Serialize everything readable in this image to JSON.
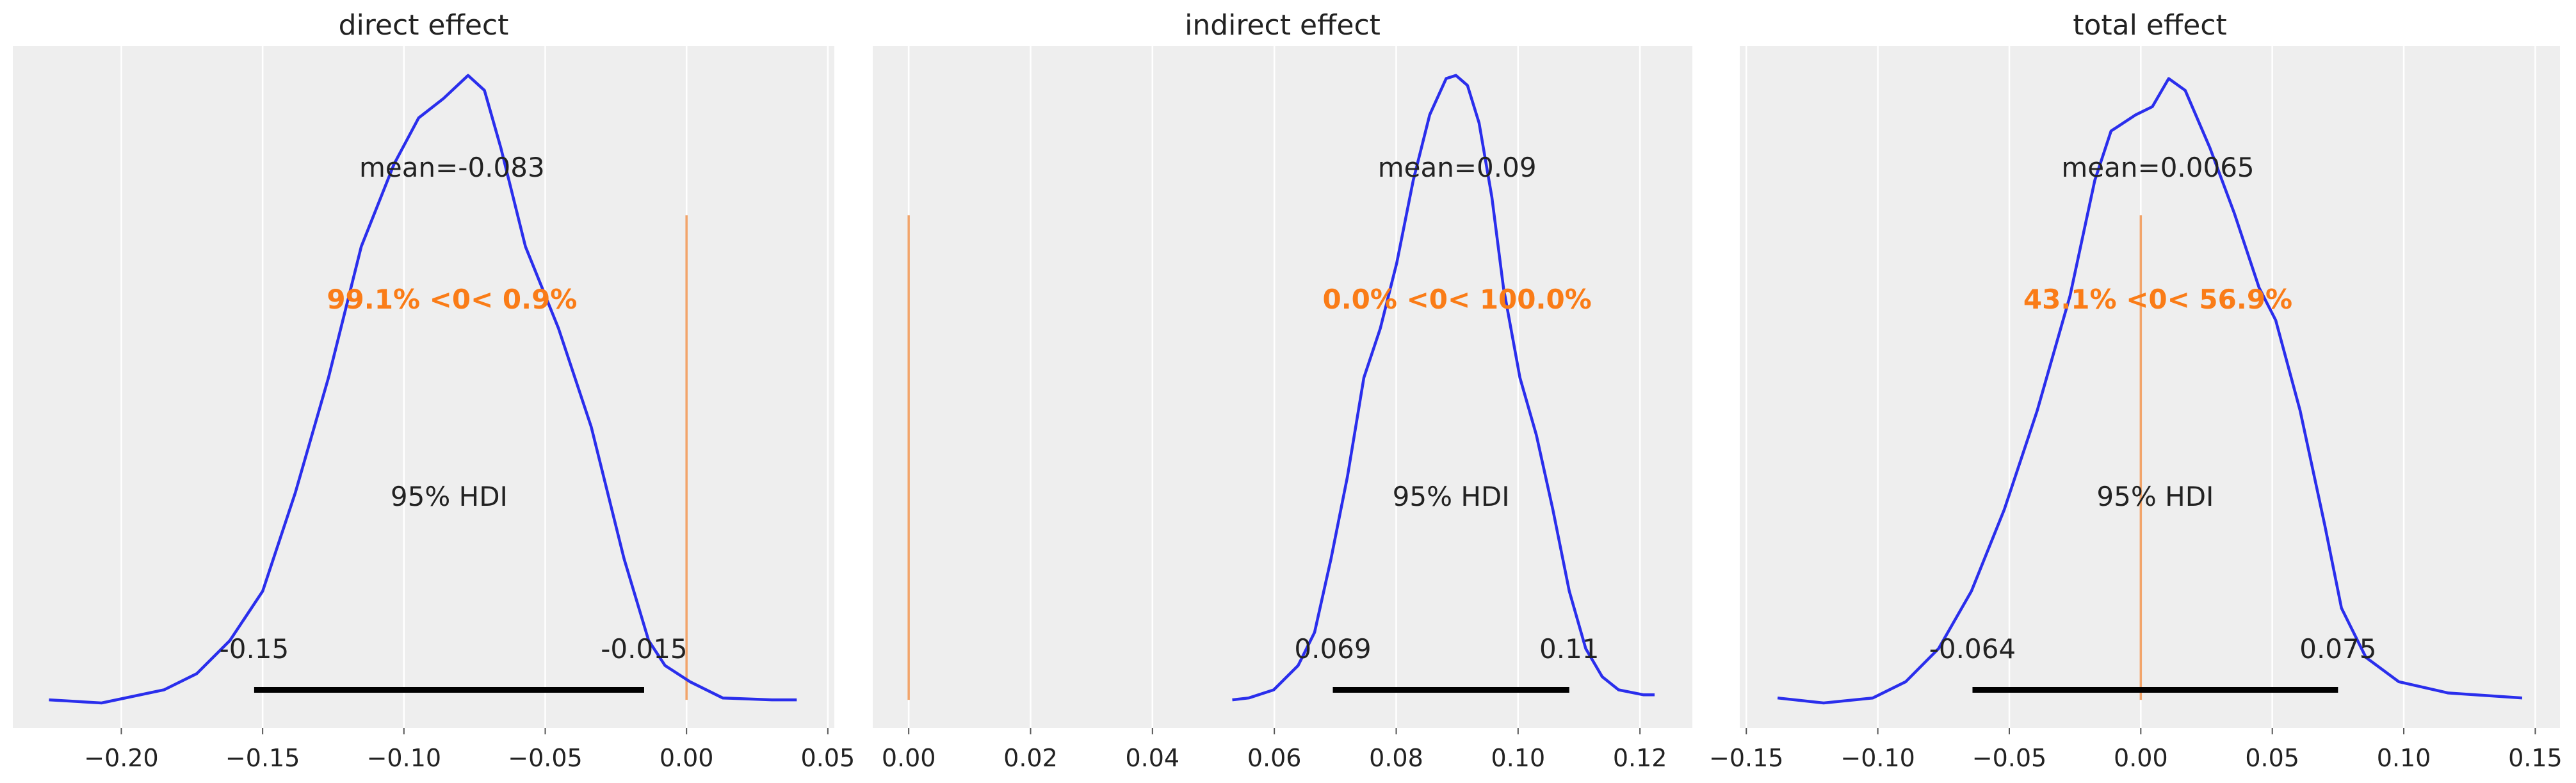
{
  "chart_data": [
    {
      "type": "line",
      "title": "direct effect",
      "xlim": [
        -0.2384,
        0.0523
      ],
      "ylim": [
        -0.045,
        1.047
      ],
      "grid": true,
      "xticks": [
        -0.2,
        -0.15,
        -0.1,
        -0.05,
        0.0,
        0.05
      ],
      "xtick_labels": [
        "−0.20",
        "−0.15",
        "−0.10",
        "−0.05",
        "0.00",
        "0.05"
      ],
      "kde": {
        "x": [
          -0.2256,
          -0.207,
          -0.1849,
          -0.1733,
          -0.1616,
          -0.15,
          -0.1384,
          -0.1267,
          -0.1151,
          -0.1035,
          -0.0948,
          -0.086,
          -0.0773,
          -0.0715,
          -0.0657,
          -0.057,
          -0.0453,
          -0.0337,
          -0.0221,
          -0.0134,
          -0.0076,
          0.0012,
          0.0128,
          0.0302,
          0.039
        ],
        "density": [
          0,
          -0.005,
          0.016,
          0.042,
          0.095,
          0.174,
          0.332,
          0.516,
          0.726,
          0.858,
          0.932,
          0.963,
          1,
          0.976,
          0.884,
          0.726,
          0.595,
          0.437,
          0.226,
          0.095,
          0.055,
          0.029,
          0.003,
          0,
          0
        ]
      },
      "mean": -0.083,
      "mean_label": "mean=-0.083",
      "ref_val": 0,
      "ref_label": "99.1% <0< 0.9%",
      "hdi_prob_label": "95% HDI",
      "hdi": [
        -0.153,
        -0.015
      ],
      "hdi_labels": [
        "-0.15",
        "-0.015"
      ]
    },
    {
      "type": "line",
      "title": "indirect effect",
      "xlim": [
        -0.0059,
        0.1286
      ],
      "ylim": [
        -0.045,
        1.047
      ],
      "grid": true,
      "xticks": [
        0.0,
        0.02,
        0.04,
        0.06,
        0.08,
        0.1,
        0.12
      ],
      "xtick_labels": [
        "0.00",
        "0.02",
        "0.04",
        "0.06",
        "0.08",
        "0.10",
        "0.12"
      ],
      "kde": {
        "x": [
          0.0531,
          0.0558,
          0.0599,
          0.0639,
          0.0666,
          0.0693,
          0.072,
          0.0747,
          0.0774,
          0.0801,
          0.0828,
          0.0855,
          0.0882,
          0.0898,
          0.0917,
          0.0936,
          0.0957,
          0.0976,
          0.1003,
          0.103,
          0.1057,
          0.1084,
          0.1111,
          0.1138,
          0.1165,
          0.1206,
          0.1224
        ],
        "density": [
          0,
          0.003,
          0.016,
          0.055,
          0.108,
          0.226,
          0.358,
          0.516,
          0.595,
          0.7,
          0.832,
          0.937,
          0.995,
          1,
          0.984,
          0.924,
          0.805,
          0.66,
          0.516,
          0.424,
          0.305,
          0.174,
          0.082,
          0.037,
          0.016,
          0.008,
          0.008
        ]
      },
      "mean": 0.09,
      "mean_label": "mean=0.09",
      "ref_val": 0,
      "ref_label": "0.0% <0< 100.0%",
      "hdi_prob_label": "95% HDI",
      "hdi": [
        0.0696,
        0.1084
      ],
      "hdi_labels": [
        "0.069",
        "0.11"
      ]
    },
    {
      "type": "line",
      "title": "total effect",
      "xlim": [
        -0.1525,
        0.1594
      ],
      "ylim": [
        -0.045,
        1.047
      ],
      "grid": true,
      "xticks": [
        -0.15,
        -0.1,
        -0.05,
        0.0,
        0.05,
        0.1,
        0.15
      ],
      "xtick_labels": [
        "−0.15",
        "−0.10",
        "−0.05",
        "0.00",
        "0.05",
        "0.10",
        "0.15"
      ],
      "kde": {
        "x": [
          -0.1381,
          -0.1206,
          -0.1019,
          -0.0894,
          -0.0769,
          -0.0644,
          -0.0519,
          -0.0394,
          -0.0269,
          -0.0175,
          -0.0113,
          -0.0019,
          0.0044,
          0.0106,
          0.0169,
          0.0263,
          0.0356,
          0.045,
          0.0513,
          0.0606,
          0.07,
          0.0763,
          0.0856,
          0.0981,
          0.1169,
          0.145
        ],
        "density": [
          0.003,
          -0.005,
          0.003,
          0.029,
          0.082,
          0.174,
          0.305,
          0.463,
          0.647,
          0.832,
          0.911,
          0.937,
          0.95,
          0.995,
          0.976,
          0.884,
          0.779,
          0.66,
          0.608,
          0.463,
          0.279,
          0.147,
          0.068,
          0.029,
          0.011,
          0.003
        ]
      },
      "mean": 0.0065,
      "mean_label": "mean=0.0065",
      "ref_val": 0,
      "ref_label": "43.1% <0< 56.9%",
      "hdi_prob_label": "95% HDI",
      "hdi": [
        -0.064,
        0.075
      ],
      "hdi_labels": [
        "-0.064",
        "0.075"
      ]
    }
  ],
  "colors": {
    "background": "#eeeeee",
    "grid": "#ffffff",
    "kde": "#2a2eec",
    "ref_line": "#f2a46a",
    "ref_text": "#fa7c17",
    "hdi_bar": "#000000",
    "text": "#222222"
  }
}
